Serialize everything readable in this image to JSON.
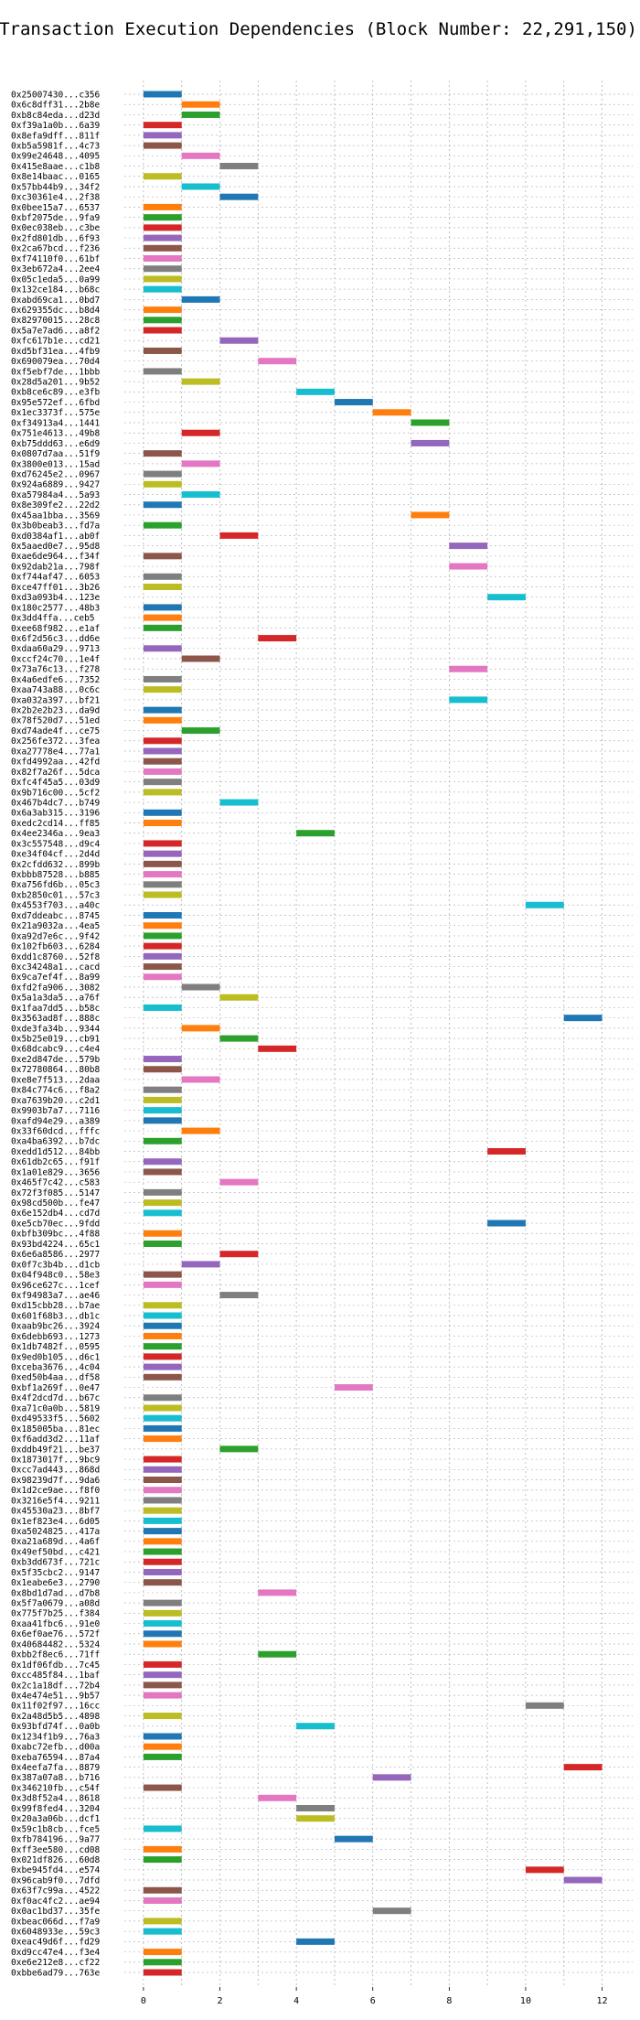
{
  "chart_data": {
    "type": "gantt",
    "title": "Transaction Execution Dependencies (Block Number: 22,291,150)",
    "xlabel": "",
    "ylabel": "",
    "xlim": [
      -0.5,
      12.8
    ],
    "xticks": [
      0,
      2,
      4,
      6,
      8,
      10,
      12
    ],
    "grid": true,
    "legend": "none",
    "bar_duration": 1,
    "palette": [
      "#1f77b4",
      "#ff7f0e",
      "#2ca02c",
      "#d62728",
      "#9467bd",
      "#8c564b",
      "#e377c2",
      "#7f7f7f",
      "#bcbd22",
      "#17becf"
    ],
    "transactions": [
      {
        "tx": "0x25007430...c356",
        "start": 0
      },
      {
        "tx": "0x6c8dff31...2b8e",
        "start": 1
      },
      {
        "tx": "0xb8c84eda...d23d",
        "start": 1
      },
      {
        "tx": "0xf39a1a0b...6a39",
        "start": 0
      },
      {
        "tx": "0x8efa9dff...811f",
        "start": 0
      },
      {
        "tx": "0xb5a5981f...4c73",
        "start": 0
      },
      {
        "tx": "0x99e24648...4095",
        "start": 1
      },
      {
        "tx": "0x415e8aae...c1b8",
        "start": 2
      },
      {
        "tx": "0x8e14baac...0165",
        "start": 0
      },
      {
        "tx": "0x57bb44b9...34f2",
        "start": 1
      },
      {
        "tx": "0xc30361e4...2f38",
        "start": 2
      },
      {
        "tx": "0x0bee15a7...6537",
        "start": 0
      },
      {
        "tx": "0xbf2075de...9fa9",
        "start": 0
      },
      {
        "tx": "0x0ec038eb...c3be",
        "start": 0
      },
      {
        "tx": "0x2fd801db...6f93",
        "start": 0
      },
      {
        "tx": "0x2ca67bcd...f236",
        "start": 0
      },
      {
        "tx": "0xf74110f0...61bf",
        "start": 0
      },
      {
        "tx": "0x3eb672a4...2ee4",
        "start": 0
      },
      {
        "tx": "0x05c1eda5...0a99",
        "start": 0
      },
      {
        "tx": "0x132ce184...b68c",
        "start": 0
      },
      {
        "tx": "0xabd69ca1...0bd7",
        "start": 1
      },
      {
        "tx": "0x629355dc...b8d4",
        "start": 0
      },
      {
        "tx": "0x82970015...28c8",
        "start": 0
      },
      {
        "tx": "0x5a7e7ad6...a8f2",
        "start": 0
      },
      {
        "tx": "0xfc617b1e...cd21",
        "start": 2
      },
      {
        "tx": "0xd5bf31ea...4fb9",
        "start": 0
      },
      {
        "tx": "0x690079ea...70d4",
        "start": 3
      },
      {
        "tx": "0xf5ebf7de...1bbb",
        "start": 0
      },
      {
        "tx": "0x28d5a201...9b52",
        "start": 1
      },
      {
        "tx": "0xb8ce6c89...e3fb",
        "start": 4
      },
      {
        "tx": "0x95e572ef...6fbd",
        "start": 5
      },
      {
        "tx": "0x1ec3373f...575e",
        "start": 6
      },
      {
        "tx": "0xf34913a4...1441",
        "start": 7
      },
      {
        "tx": "0x751e4613...49b8",
        "start": 1
      },
      {
        "tx": "0xb75ddd63...e6d9",
        "start": 7
      },
      {
        "tx": "0x0807d7aa...51f9",
        "start": 0
      },
      {
        "tx": "0x3800e013...15ad",
        "start": 1
      },
      {
        "tx": "0xd76245e2...0967",
        "start": 0
      },
      {
        "tx": "0x924a6889...9427",
        "start": 0
      },
      {
        "tx": "0xa57984a4...5a93",
        "start": 1
      },
      {
        "tx": "0x8e309fe2...22d2",
        "start": 0
      },
      {
        "tx": "0x45aa1bba...3569",
        "start": 7
      },
      {
        "tx": "0x3b0beab3...fd7a",
        "start": 0
      },
      {
        "tx": "0xd0384af1...ab0f",
        "start": 2
      },
      {
        "tx": "0x5aaed0e7...95d8",
        "start": 8
      },
      {
        "tx": "0xae6de964...f34f",
        "start": 0
      },
      {
        "tx": "0x92dab21a...798f",
        "start": 8
      },
      {
        "tx": "0xf744af47...6053",
        "start": 0
      },
      {
        "tx": "0xce47ff01...3b26",
        "start": 0
      },
      {
        "tx": "0xd3a093b4...123e",
        "start": 9
      },
      {
        "tx": "0x180c2577...48b3",
        "start": 0
      },
      {
        "tx": "0x3dd4ffa...ceb5",
        "start": 0
      },
      {
        "tx": "0xee68f982...e1af",
        "start": 0
      },
      {
        "tx": "0x6f2d56c3...dd6e",
        "start": 3
      },
      {
        "tx": "0xdaa60a29...9713",
        "start": 0
      },
      {
        "tx": "0xccf24c70...1e4f",
        "start": 1
      },
      {
        "tx": "0x73a76c13...f278",
        "start": 8
      },
      {
        "tx": "0x4a6edfe6...7352",
        "start": 0
      },
      {
        "tx": "0xaa743a88...0c6c",
        "start": 0
      },
      {
        "tx": "0xa032a397...bf21",
        "start": 8
      },
      {
        "tx": "0x2b2e2b23...da9d",
        "start": 0
      },
      {
        "tx": "0x78f520d7...51ed",
        "start": 0
      },
      {
        "tx": "0xd74ade4f...ce75",
        "start": 1
      },
      {
        "tx": "0x256fe372...3fea",
        "start": 0
      },
      {
        "tx": "0xa27778e4...77a1",
        "start": 0
      },
      {
        "tx": "0xfd4992aa...42fd",
        "start": 0
      },
      {
        "tx": "0x82f7a26f...5dca",
        "start": 0
      },
      {
        "tx": "0xfc4f45a5...03d9",
        "start": 0
      },
      {
        "tx": "0x9b716c00...5cf2",
        "start": 0
      },
      {
        "tx": "0x467b4dc7...b749",
        "start": 2
      },
      {
        "tx": "0x6a3ab315...3196",
        "start": 0
      },
      {
        "tx": "0xedc2cd14...ff85",
        "start": 0
      },
      {
        "tx": "0x4ee2346a...9ea3",
        "start": 4
      },
      {
        "tx": "0x3c557548...d9c4",
        "start": 0
      },
      {
        "tx": "0xe34f04cf...2d4d",
        "start": 0
      },
      {
        "tx": "0x2cfdd632...899b",
        "start": 0
      },
      {
        "tx": "0xbbb87528...b885",
        "start": 0
      },
      {
        "tx": "0xa756fd6b...05c3",
        "start": 0
      },
      {
        "tx": "0xb2850c01...57c3",
        "start": 0
      },
      {
        "tx": "0x4553f703...a40c",
        "start": 10
      },
      {
        "tx": "0xd7ddeabc...8745",
        "start": 0
      },
      {
        "tx": "0x21a9032a...4ea5",
        "start": 0
      },
      {
        "tx": "0xa92d7e6c...9f42",
        "start": 0
      },
      {
        "tx": "0x102fb603...6284",
        "start": 0
      },
      {
        "tx": "0xdd1c8760...52f8",
        "start": 0
      },
      {
        "tx": "0xc34248a1...cacd",
        "start": 0
      },
      {
        "tx": "0x9ca7ef4f...8a99",
        "start": 0
      },
      {
        "tx": "0xfd2fa906...3082",
        "start": 1
      },
      {
        "tx": "0x5a1a3da5...a76f",
        "start": 2
      },
      {
        "tx": "0x1faa7dd5...b58c",
        "start": 0
      },
      {
        "tx": "0x3563ad8f...888c",
        "start": 11
      },
      {
        "tx": "0xde3fa34b...9344",
        "start": 1
      },
      {
        "tx": "0x5b25e019...cb91",
        "start": 2
      },
      {
        "tx": "0x68dcabc9...c4e4",
        "start": 3
      },
      {
        "tx": "0xe2d847de...579b",
        "start": 0
      },
      {
        "tx": "0x72780864...80b8",
        "start": 0
      },
      {
        "tx": "0xe8e7f513...2daa",
        "start": 1
      },
      {
        "tx": "0x84c774c6...f8a2",
        "start": 0
      },
      {
        "tx": "0xa7639b20...c2d1",
        "start": 0
      },
      {
        "tx": "0x9903b7a7...7116",
        "start": 0
      },
      {
        "tx": "0xafd94e29...a389",
        "start": 0
      },
      {
        "tx": "0x33f60dcd...fffc",
        "start": 1
      },
      {
        "tx": "0xa4ba6392...b7dc",
        "start": 0
      },
      {
        "tx": "0xedd1d512...84bb",
        "start": 9
      },
      {
        "tx": "0x61db2c65...f91f",
        "start": 0
      },
      {
        "tx": "0x1a01e829...3656",
        "start": 0
      },
      {
        "tx": "0x465f7c42...c583",
        "start": 2
      },
      {
        "tx": "0x72f3f085...5147",
        "start": 0
      },
      {
        "tx": "0x98cd500b...fe47",
        "start": 0
      },
      {
        "tx": "0x6e152db4...cd7d",
        "start": 0
      },
      {
        "tx": "0xe5cb70ec...9fdd",
        "start": 9
      },
      {
        "tx": "0xbfb309bc...4f88",
        "start": 0
      },
      {
        "tx": "0x93bd4224...65c1",
        "start": 0
      },
      {
        "tx": "0x6e6a8586...2977",
        "start": 2
      },
      {
        "tx": "0x0f7c3b4b...d1cb",
        "start": 1
      },
      {
        "tx": "0x04f948c0...58e3",
        "start": 0
      },
      {
        "tx": "0x96ce627c...1cef",
        "start": 0
      },
      {
        "tx": "0xf94983a7...ae46",
        "start": 2
      },
      {
        "tx": "0xd15cbb28...b7ae",
        "start": 0
      },
      {
        "tx": "0x601f68b3...db1c",
        "start": 0
      },
      {
        "tx": "0xaab9bc26...3924",
        "start": 0
      },
      {
        "tx": "0x6debb693...1273",
        "start": 0
      },
      {
        "tx": "0x1db7482f...0595",
        "start": 0
      },
      {
        "tx": "0x9ed0b105...d6c1",
        "start": 0
      },
      {
        "tx": "0xceba3676...4c04",
        "start": 0
      },
      {
        "tx": "0xed50b4aa...df58",
        "start": 0
      },
      {
        "tx": "0xbf1a269f...0e47",
        "start": 5
      },
      {
        "tx": "0x4f2dcd7d...b67c",
        "start": 0
      },
      {
        "tx": "0xa71c0a0b...5819",
        "start": 0
      },
      {
        "tx": "0xd49533f5...5602",
        "start": 0
      },
      {
        "tx": "0x185005ba...81ec",
        "start": 0
      },
      {
        "tx": "0xf6add3d2...11af",
        "start": 0
      },
      {
        "tx": "0xddb49f21...be37",
        "start": 2
      },
      {
        "tx": "0x1873017f...9bc9",
        "start": 0
      },
      {
        "tx": "0xcc7ad443...868d",
        "start": 0
      },
      {
        "tx": "0x98239d7f...9da6",
        "start": 0
      },
      {
        "tx": "0x1d2ce9ae...f8f0",
        "start": 0
      },
      {
        "tx": "0x3216e5f4...9211",
        "start": 0
      },
      {
        "tx": "0x45530a23...8bf7",
        "start": 0
      },
      {
        "tx": "0x1ef823e4...6d05",
        "start": 0
      },
      {
        "tx": "0xa5024825...417a",
        "start": 0
      },
      {
        "tx": "0xa21a689d...4a6f",
        "start": 0
      },
      {
        "tx": "0x49ef50bd...c421",
        "start": 0
      },
      {
        "tx": "0xb3dd673f...721c",
        "start": 0
      },
      {
        "tx": "0x5f35cbc2...9147",
        "start": 0
      },
      {
        "tx": "0x1eabe6e3...2790",
        "start": 0
      },
      {
        "tx": "0x8bd1d7ad...d7b8",
        "start": 3
      },
      {
        "tx": "0x5f7a0679...a08d",
        "start": 0
      },
      {
        "tx": "0x775f7b25...f384",
        "start": 0
      },
      {
        "tx": "0xaa41fbc6...91e0",
        "start": 0
      },
      {
        "tx": "0x6ef0ae76...572f",
        "start": 0
      },
      {
        "tx": "0x40684482...5324",
        "start": 0
      },
      {
        "tx": "0xbb2f8ec6...71ff",
        "start": 3
      },
      {
        "tx": "0x1df06fdb...7c45",
        "start": 0
      },
      {
        "tx": "0xcc485f84...1baf",
        "start": 0
      },
      {
        "tx": "0x2c1a18df...72b4",
        "start": 0
      },
      {
        "tx": "0x4e474e51...9b57",
        "start": 0
      },
      {
        "tx": "0x11f02f97...16cc",
        "start": 10
      },
      {
        "tx": "0x2a48d5b5...4898",
        "start": 0
      },
      {
        "tx": "0x93bfd74f...0a0b",
        "start": 4
      },
      {
        "tx": "0x1234f1b9...76a3",
        "start": 0
      },
      {
        "tx": "0xabc72efb...d00a",
        "start": 0
      },
      {
        "tx": "0xeba76594...87a4",
        "start": 0
      },
      {
        "tx": "0x4eefa7fa...8879",
        "start": 11
      },
      {
        "tx": "0x387a07a8...b716",
        "start": 6
      },
      {
        "tx": "0x346210fb...c54f",
        "start": 0
      },
      {
        "tx": "0x3d8f52a4...8618",
        "start": 3
      },
      {
        "tx": "0x99f8fed4...3204",
        "start": 4
      },
      {
        "tx": "0x20a3a06b...dcf1",
        "start": 4
      },
      {
        "tx": "0x59c1b8cb...fce5",
        "start": 0
      },
      {
        "tx": "0xfb784196...9a77",
        "start": 5
      },
      {
        "tx": "0xff3ee580...cd08",
        "start": 0
      },
      {
        "tx": "0x021df826...60d8",
        "start": 0
      },
      {
        "tx": "0xbe945fd4...e574",
        "start": 10
      },
      {
        "tx": "0x96cab9f0...7dfd",
        "start": 11
      },
      {
        "tx": "0x63f7c99a...4522",
        "start": 0
      },
      {
        "tx": "0xf0ac4fc2...ae94",
        "start": 0
      },
      {
        "tx": "0x0ac1bd37...35fe",
        "start": 6
      },
      {
        "tx": "0xbeac066d...f7a9",
        "start": 0
      },
      {
        "tx": "0x6048933e...59c3",
        "start": 0
      },
      {
        "tx": "0xeac49d6f...fd29",
        "start": 4
      },
      {
        "tx": "0xd9cc47e4...f3e4",
        "start": 0
      },
      {
        "tx": "0xe6e212e8...cf22",
        "start": 0
      },
      {
        "tx": "0xbbe6ad79...763e",
        "start": 0
      }
    ]
  }
}
